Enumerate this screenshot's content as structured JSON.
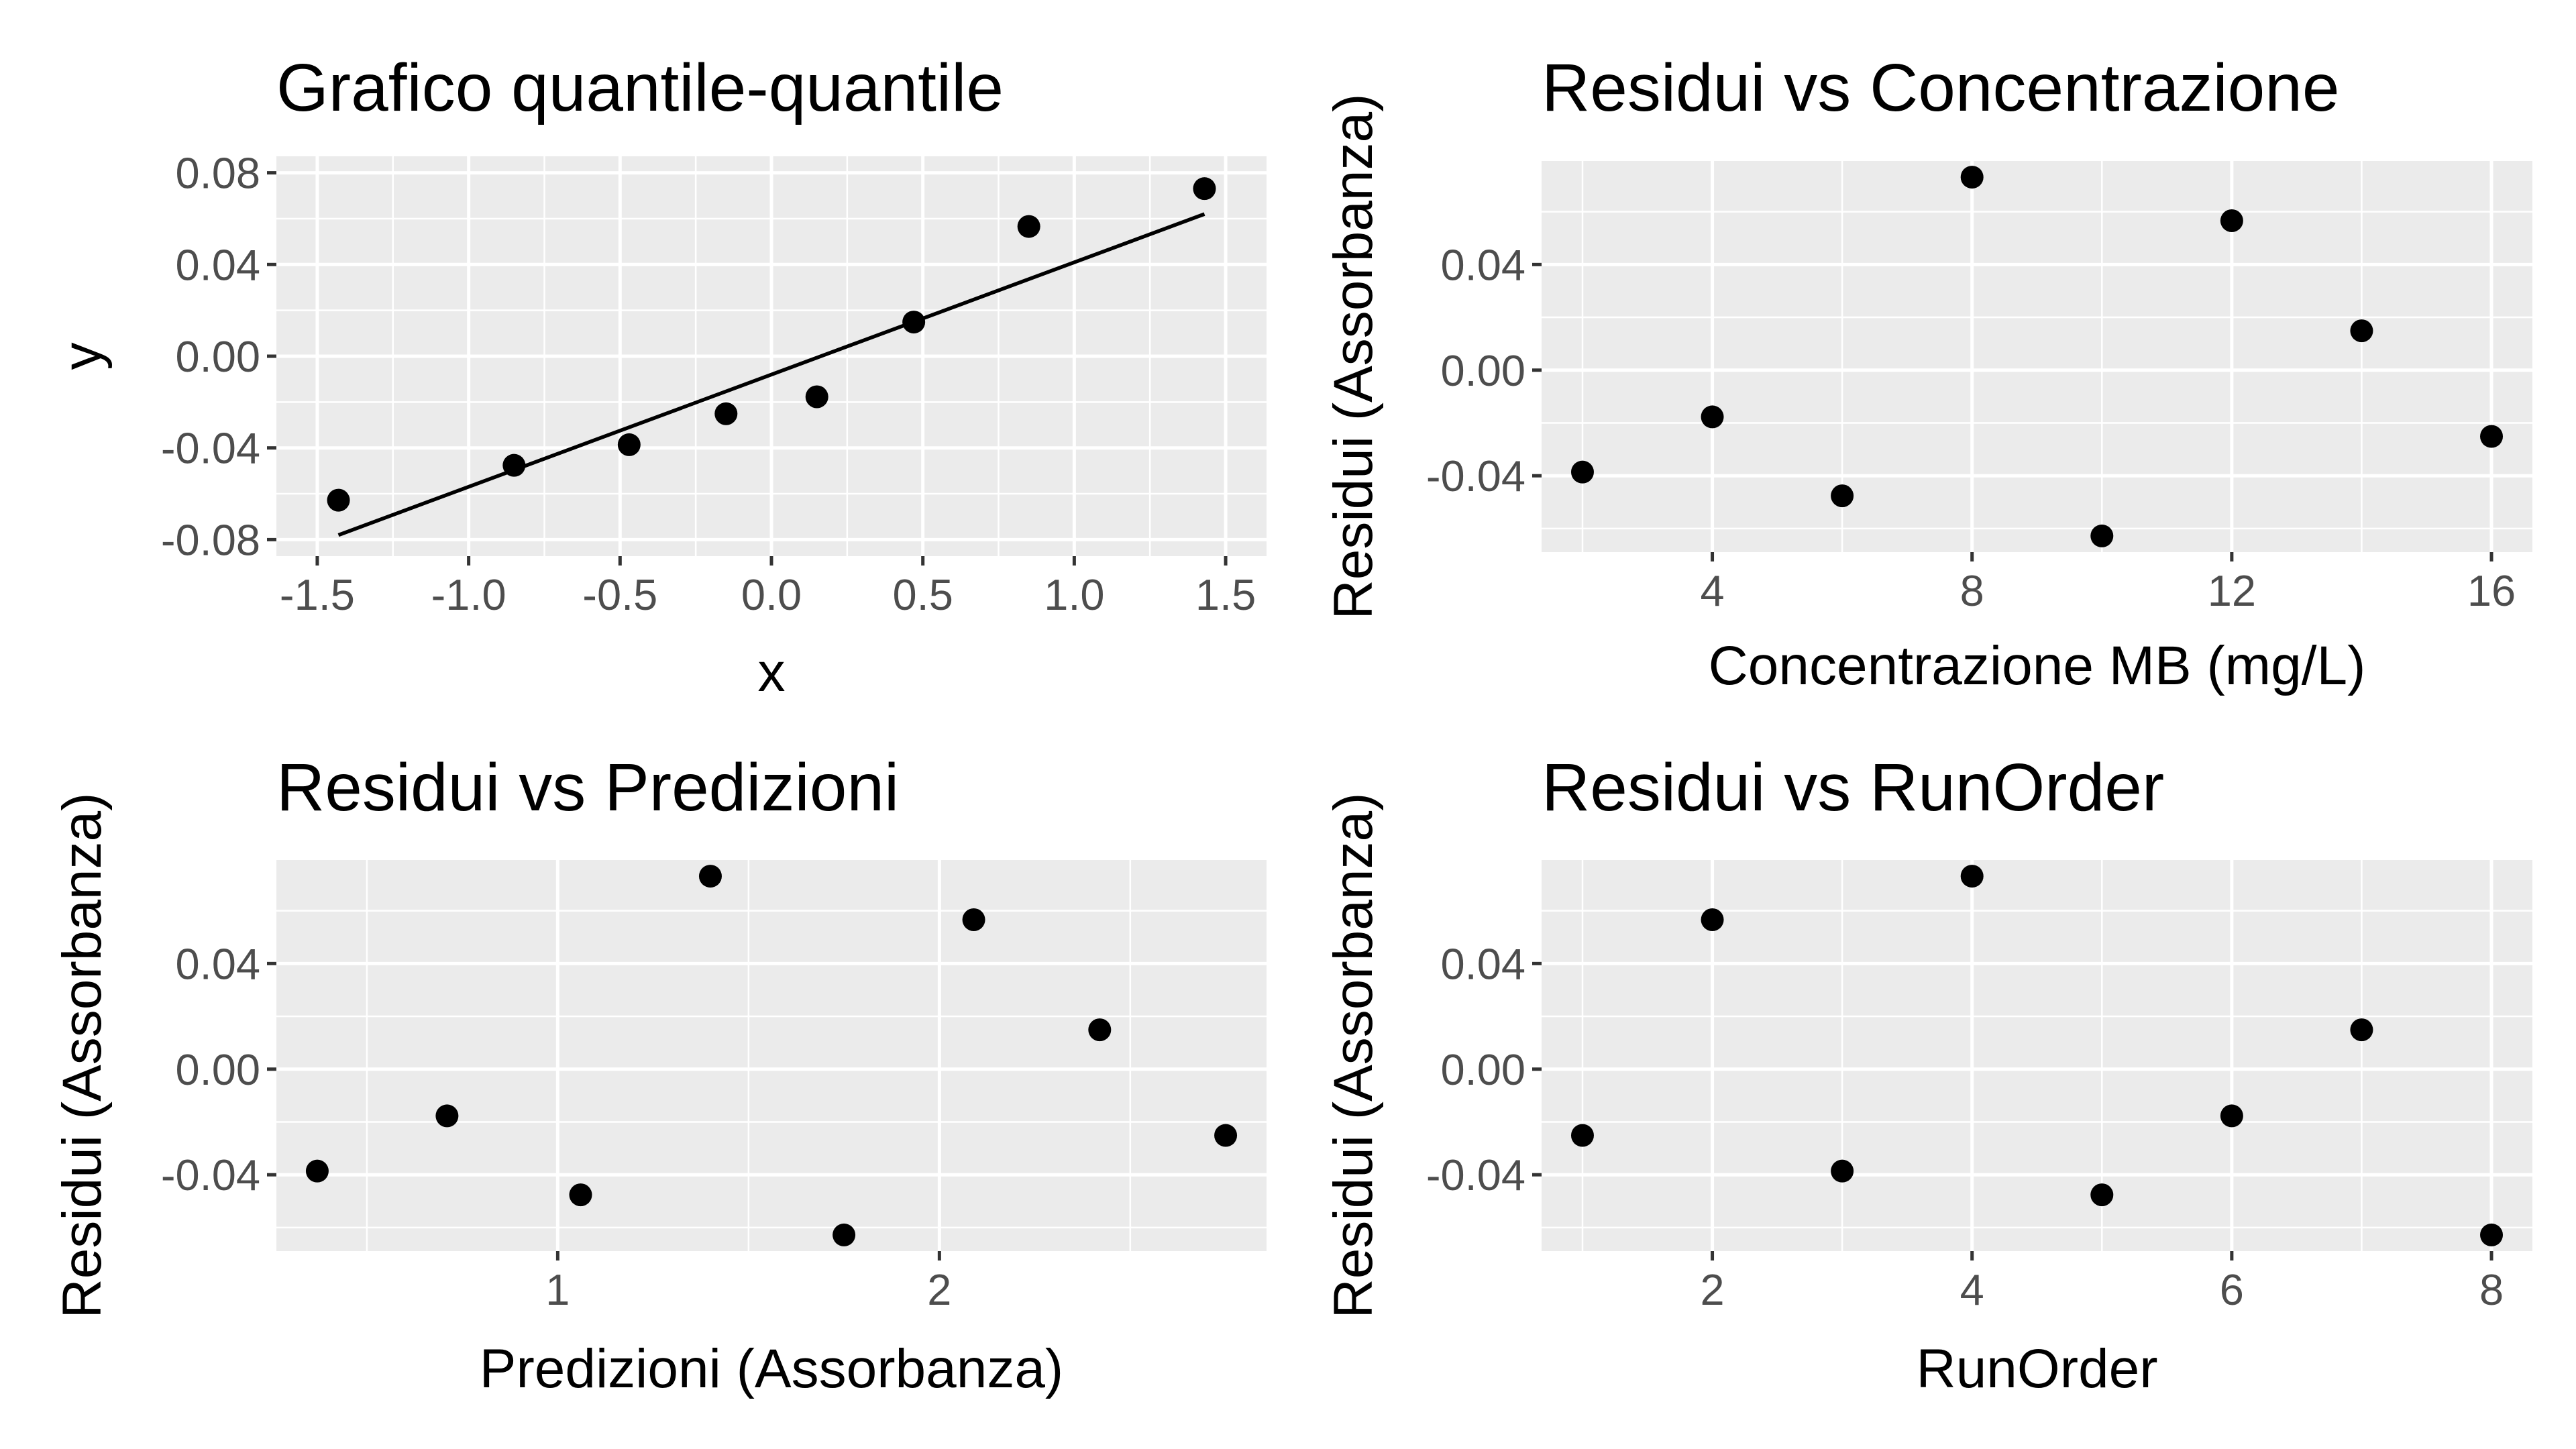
{
  "chart_data": [
    {
      "type": "scatter",
      "title": "Grafico quantile-quantile",
      "xlabel": "x",
      "ylabel": "y",
      "xlim": [
        -1.5,
        1.5
      ],
      "ylim": [
        -0.08,
        0.08
      ],
      "x_ticks": [
        -1.5,
        -1.0,
        -0.5,
        0.0,
        0.5,
        1.0,
        1.5
      ],
      "x_tick_labels": [
        "-1.5",
        "-1.0",
        "-0.5",
        "0.0",
        "0.5",
        "1.0",
        "1.5"
      ],
      "y_ticks": [
        -0.08,
        -0.04,
        0.0,
        0.04,
        0.08
      ],
      "y_tick_labels": [
        "-0.08",
        "-0.04",
        "0.00",
        "0.04",
        "0.08"
      ],
      "grid": true,
      "points": [
        {
          "x": -1.43,
          "y": -0.0628
        },
        {
          "x": -0.85,
          "y": -0.0476
        },
        {
          "x": -0.47,
          "y": -0.0386
        },
        {
          "x": -0.15,
          "y": -0.0251
        },
        {
          "x": 0.15,
          "y": -0.0177
        },
        {
          "x": 0.47,
          "y": 0.0149
        },
        {
          "x": 0.85,
          "y": 0.0566
        },
        {
          "x": 1.43,
          "y": 0.0731
        }
      ],
      "reference_line": {
        "x": [
          -1.43,
          1.43
        ],
        "y": [
          -0.078,
          0.062
        ]
      }
    },
    {
      "type": "scatter",
      "title": "Residui vs Concentrazione",
      "xlabel": "Concentrazione MB (mg/L)",
      "ylabel": "Residui (Assorbanza)",
      "xlim": [
        2,
        16
      ],
      "ylim": [
        -0.0628,
        0.0731
      ],
      "x_ticks": [
        4,
        8,
        12,
        16
      ],
      "x_tick_labels": [
        "4",
        "8",
        "12",
        "16"
      ],
      "y_ticks": [
        -0.04,
        0.0,
        0.04
      ],
      "y_tick_labels": [
        "-0.04",
        "0.00",
        "0.04"
      ],
      "grid": true,
      "points": [
        {
          "x": 2,
          "y": -0.0386
        },
        {
          "x": 4,
          "y": -0.0177
        },
        {
          "x": 6,
          "y": -0.0476
        },
        {
          "x": 8,
          "y": 0.0731
        },
        {
          "x": 10,
          "y": -0.0628
        },
        {
          "x": 12,
          "y": 0.0566
        },
        {
          "x": 14,
          "y": 0.0149
        },
        {
          "x": 16,
          "y": -0.0251
        }
      ]
    },
    {
      "type": "scatter",
      "title": "Residui vs Predizioni",
      "xlabel": "Predizioni (Assorbanza)",
      "ylabel": "Residui (Assorbanza)",
      "xlim": [
        0.37,
        2.75
      ],
      "ylim": [
        -0.0628,
        0.0731
      ],
      "x_ticks": [
        1,
        2
      ],
      "x_tick_labels": [
        "1",
        "2"
      ],
      "y_ticks": [
        -0.04,
        0.0,
        0.04
      ],
      "y_tick_labels": [
        "-0.04",
        "0.00",
        "0.04"
      ],
      "grid": true,
      "points": [
        {
          "x": 0.37,
          "y": -0.0386
        },
        {
          "x": 0.71,
          "y": -0.0177
        },
        {
          "x": 1.06,
          "y": -0.0476
        },
        {
          "x": 1.4,
          "y": 0.0731
        },
        {
          "x": 1.75,
          "y": -0.0628
        },
        {
          "x": 2.09,
          "y": 0.0566
        },
        {
          "x": 2.42,
          "y": 0.0149
        },
        {
          "x": 2.75,
          "y": -0.0251
        }
      ]
    },
    {
      "type": "scatter",
      "title": "Residui vs RunOrder",
      "xlabel": "RunOrder",
      "ylabel": "Residui (Assorbanza)",
      "xlim": [
        1,
        8
      ],
      "ylim": [
        -0.0628,
        0.0731
      ],
      "x_ticks": [
        2,
        4,
        6,
        8
      ],
      "x_tick_labels": [
        "2",
        "4",
        "6",
        "8"
      ],
      "y_ticks": [
        -0.04,
        0.0,
        0.04
      ],
      "y_tick_labels": [
        "-0.04",
        "0.00",
        "0.04"
      ],
      "grid": true,
      "points": [
        {
          "x": 1,
          "y": -0.0251
        },
        {
          "x": 2,
          "y": 0.0566
        },
        {
          "x": 3,
          "y": -0.0386
        },
        {
          "x": 4,
          "y": 0.0731
        },
        {
          "x": 5,
          "y": -0.0476
        },
        {
          "x": 6,
          "y": -0.0177
        },
        {
          "x": 7,
          "y": 0.0149
        },
        {
          "x": 8,
          "y": -0.0628
        }
      ]
    }
  ]
}
